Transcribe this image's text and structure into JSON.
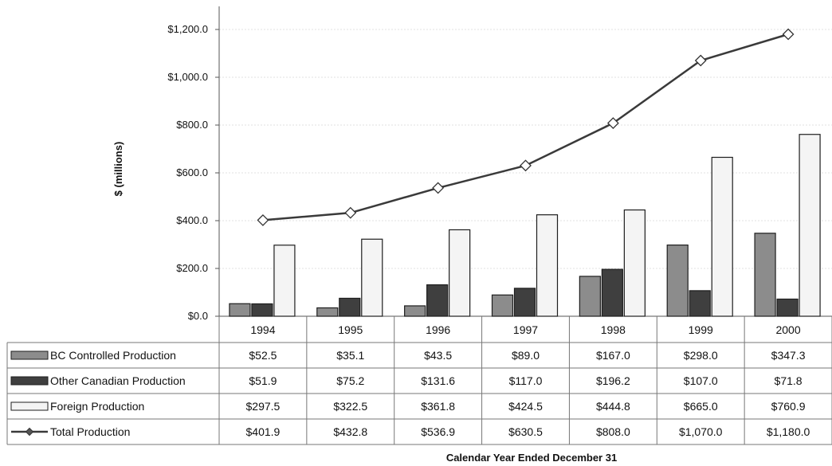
{
  "chart_data": {
    "type": "bar",
    "categories": [
      "1994",
      "1995",
      "1996",
      "1997",
      "1998",
      "1999",
      "2000"
    ],
    "series": [
      {
        "name": "BC Controlled Production",
        "type": "bar",
        "color": "#8c8c8c",
        "values": [
          52.5,
          35.1,
          43.5,
          89.0,
          167.0,
          298.0,
          347.3
        ],
        "labels": [
          "$52.5",
          "$35.1",
          "$43.5",
          "$89.0",
          "$167.0",
          "$298.0",
          "$347.3"
        ]
      },
      {
        "name": "Other Canadian Production",
        "type": "bar",
        "color": "#3f3f3f",
        "values": [
          51.9,
          75.2,
          131.6,
          117.0,
          196.2,
          107.0,
          71.8
        ],
        "labels": [
          "$51.9",
          "$75.2",
          "$131.6",
          "$117.0",
          "$196.2",
          "$107.0",
          "$71.8"
        ]
      },
      {
        "name": "Foreign Production",
        "type": "bar",
        "color": "#f4f4f4",
        "values": [
          297.5,
          322.5,
          361.8,
          424.5,
          444.8,
          665.0,
          760.9
        ],
        "labels": [
          "$297.5",
          "$322.5",
          "$361.8",
          "$424.5",
          "$444.8",
          "$665.0",
          "$760.9"
        ]
      },
      {
        "name": "Total Production",
        "type": "line",
        "color": "#3a3a3a",
        "values": [
          401.9,
          432.8,
          536.9,
          630.5,
          808.0,
          1070.0,
          1180.0
        ],
        "labels": [
          "$401.9",
          "$432.8",
          "$536.9",
          "$630.5",
          "$808.0",
          "$1,070.0",
          "$1,180.0"
        ]
      }
    ],
    "ylabel": "$ (millions)",
    "xlabel": "Calendar Year Ended December 31",
    "ylim": [
      0,
      1200
    ],
    "yticks": [
      0,
      200,
      400,
      600,
      800,
      1000,
      1200
    ],
    "ytick_labels": [
      "$0.0",
      "$200.0",
      "$400.0",
      "$600.0",
      "$800.0",
      "$1,000.0",
      "$1,200.0"
    ],
    "grid": true,
    "legend": "data table below chart"
  }
}
